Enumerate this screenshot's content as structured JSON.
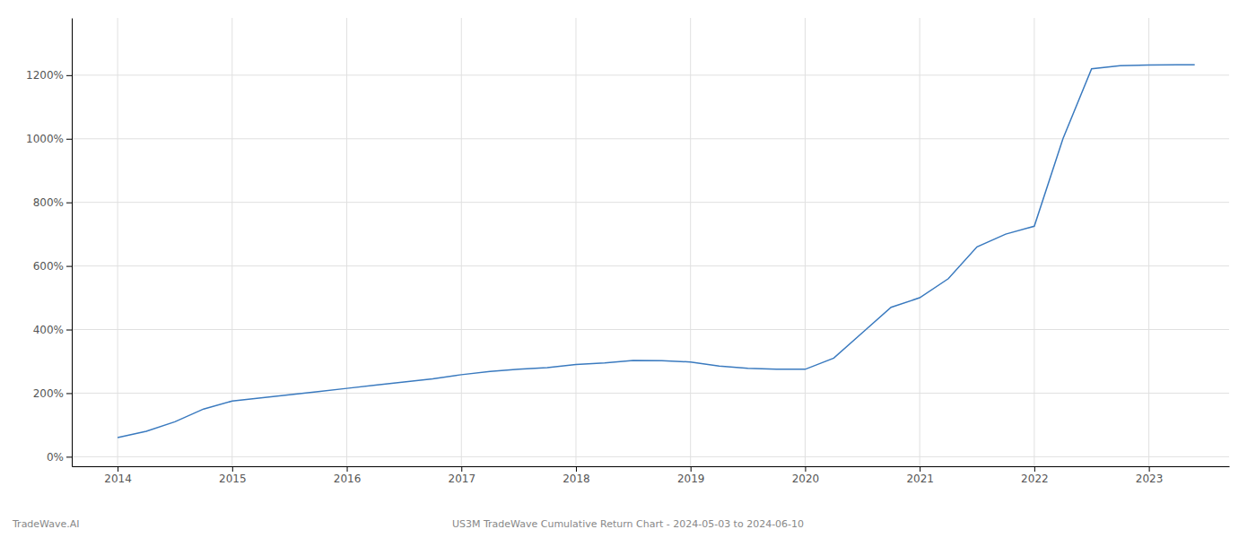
{
  "chart_data": {
    "type": "line",
    "title": "US3M TradeWave Cumulative Return Chart - 2024-05-03 to 2024-06-10",
    "annotations": [
      {
        "text": "TradeWave.AI"
      }
    ],
    "color": "#3a7abf",
    "x": [
      2014.0,
      2014.25,
      2014.5,
      2014.75,
      2015.0,
      2015.25,
      2015.5,
      2015.75,
      2016.0,
      2016.25,
      2016.5,
      2016.75,
      2017.0,
      2017.25,
      2017.5,
      2017.75,
      2018.0,
      2018.25,
      2018.5,
      2018.75,
      2019.0,
      2019.25,
      2019.5,
      2019.75,
      2020.0,
      2020.25,
      2020.5,
      2020.75,
      2021.0,
      2021.25,
      2021.5,
      2021.75,
      2022.0,
      2022.25,
      2022.5,
      2022.75,
      2023.0,
      2023.25,
      2023.4
    ],
    "values": [
      60,
      80,
      110,
      150,
      175,
      185,
      195,
      205,
      215,
      225,
      235,
      245,
      258,
      268,
      275,
      280,
      290,
      295,
      303,
      302,
      298,
      285,
      278,
      275,
      275,
      310,
      390,
      470,
      500,
      560,
      660,
      700,
      725,
      1000,
      1220,
      1230,
      1232,
      1233,
      1233
    ],
    "xlim": [
      2013.6,
      2023.7
    ],
    "ylim": [
      -30,
      1380
    ],
    "xticks": [
      2014,
      2015,
      2016,
      2017,
      2018,
      2019,
      2020,
      2021,
      2022,
      2023
    ],
    "yticks": [
      {
        "value": 0,
        "label": "0%"
      },
      {
        "value": 200,
        "label": "200%"
      },
      {
        "value": 400,
        "label": "400%"
      },
      {
        "value": 600,
        "label": "600%"
      },
      {
        "value": 800,
        "label": "800%"
      },
      {
        "value": 1000,
        "label": "1000%"
      },
      {
        "value": 1200,
        "label": "1200%"
      }
    ],
    "grid": true
  }
}
